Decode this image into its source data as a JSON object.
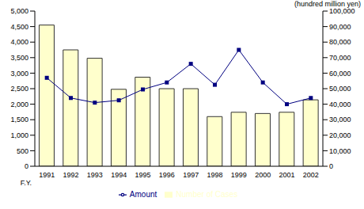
{
  "chart_data": {
    "type": "bar",
    "xlabel": "F.Y.",
    "y2label": "(hundred million yen)",
    "categories": [
      "1991",
      "1992",
      "1993",
      "1994",
      "1995",
      "1996",
      "1997",
      "1998",
      "1999",
      "2000",
      "2001",
      "2002"
    ],
    "series": [
      {
        "name": "Number of Cases",
        "type": "bar",
        "color": "#ffffcc",
        "values": [
          4550,
          3750,
          3480,
          2480,
          2870,
          2500,
          2500,
          1600,
          1740,
          1700,
          1740,
          2140
        ]
      },
      {
        "name": "Amount",
        "type": "line",
        "axis": "y2",
        "color": "#000080",
        "marker": "square",
        "values": [
          57000,
          44000,
          41000,
          42500,
          49500,
          54000,
          66000,
          52500,
          75000,
          54000,
          40000,
          44000
        ]
      }
    ],
    "ylim": [
      0,
      5000
    ],
    "yticks": [
      0,
      500,
      {
        "value": 1000,
        "label": "1,000"
      },
      {
        "value": 1500,
        "label": "1,500"
      },
      {
        "value": 2000,
        "label": "2,000"
      },
      {
        "value": 2500,
        "label": "2,500"
      },
      {
        "value": 3000,
        "label": "3,000"
      },
      {
        "value": 3500,
        "label": "3,500"
      },
      {
        "value": 4000,
        "label": "4,000"
      },
      {
        "value": 4500,
        "label": "4,500"
      },
      {
        "value": 5000,
        "label": "5,000"
      }
    ],
    "y2lim": [
      0,
      100000
    ],
    "y2ticks": [
      0,
      {
        "value": 10000,
        "label": "10,000"
      },
      {
        "value": 20000,
        "label": "20,000"
      },
      {
        "value": 30000,
        "label": "30,000"
      },
      {
        "value": 40000,
        "label": "40,000"
      },
      {
        "value": 50000,
        "label": "50,000"
      },
      {
        "value": 60000,
        "label": "60,000"
      },
      {
        "value": 70000,
        "label": "70,000"
      },
      {
        "value": 80000,
        "label": "80,000"
      },
      {
        "value": 90000,
        "label": "90,000"
      },
      {
        "value": 100000,
        "label": "100,000"
      }
    ],
    "grid": false,
    "legend": "bottom"
  }
}
